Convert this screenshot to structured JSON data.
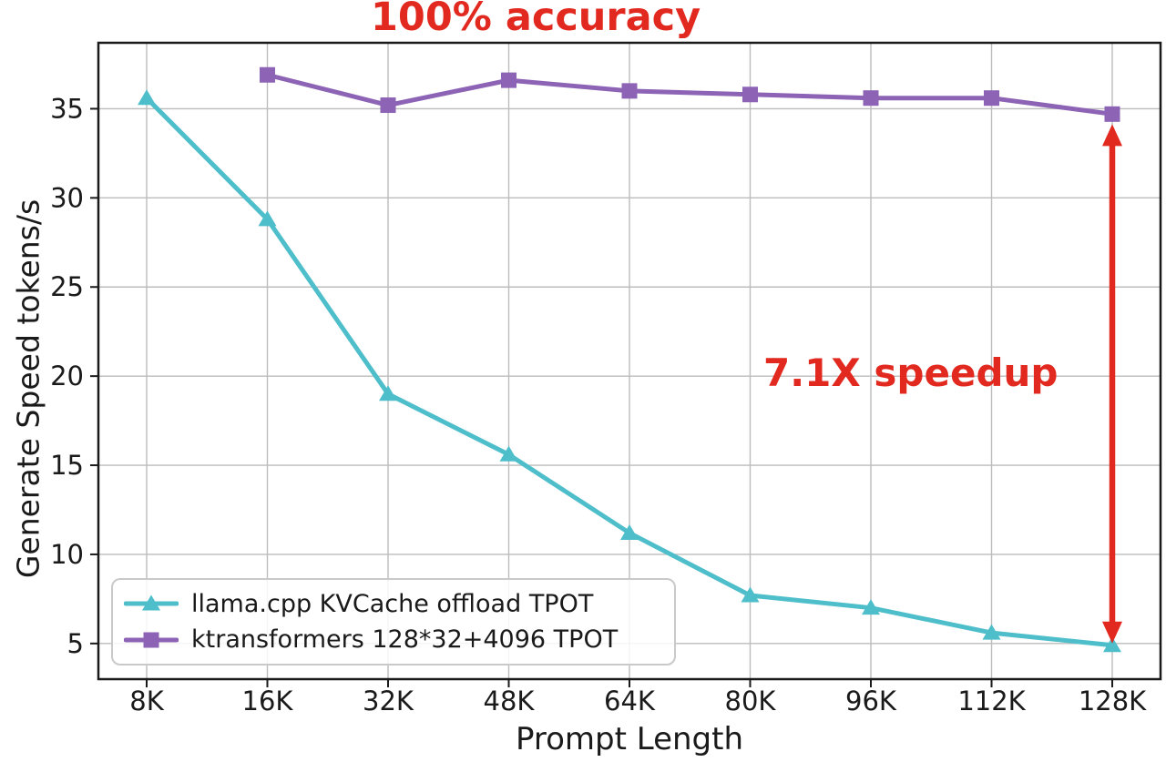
{
  "chart_data": {
    "type": "line",
    "title": "100% accuracy",
    "xlabel": "Prompt Length",
    "ylabel": "Generate Speed tokens/s",
    "categories": [
      "8K",
      "16K",
      "32K",
      "48K",
      "64K",
      "80K",
      "96K",
      "112K",
      "128K"
    ],
    "yticks": [
      5,
      10,
      15,
      20,
      25,
      30,
      35
    ],
    "ylim": [
      3.0,
      38.7
    ],
    "grid": true,
    "grid_color": "#bcbcbc",
    "axis_color": "#1a1a1a",
    "legend_position": "lower left",
    "series": [
      {
        "name": "llama.cpp KVCache offload TPOT",
        "color": "#4dbeca",
        "marker": "triangle",
        "values": [
          35.6,
          28.8,
          19.0,
          15.6,
          11.2,
          7.7,
          7.0,
          5.6,
          4.9
        ]
      },
      {
        "name": "ktransformers 128*32+4096 TPOT",
        "color": "#8d63b5",
        "marker": "square",
        "values": [
          null,
          36.9,
          35.2,
          36.6,
          36.0,
          35.8,
          35.6,
          35.6,
          34.7
        ]
      }
    ],
    "annotations": {
      "accuracy_label": {
        "text": "100% accuracy",
        "color": "#e2291f"
      },
      "speedup_label": {
        "text": "7.1X speedup",
        "color": "#e2291f"
      },
      "speedup_arrow": {
        "x_category": "128K",
        "value_from": 34.7,
        "value_to": 4.9,
        "color": "#e2291f"
      }
    }
  }
}
